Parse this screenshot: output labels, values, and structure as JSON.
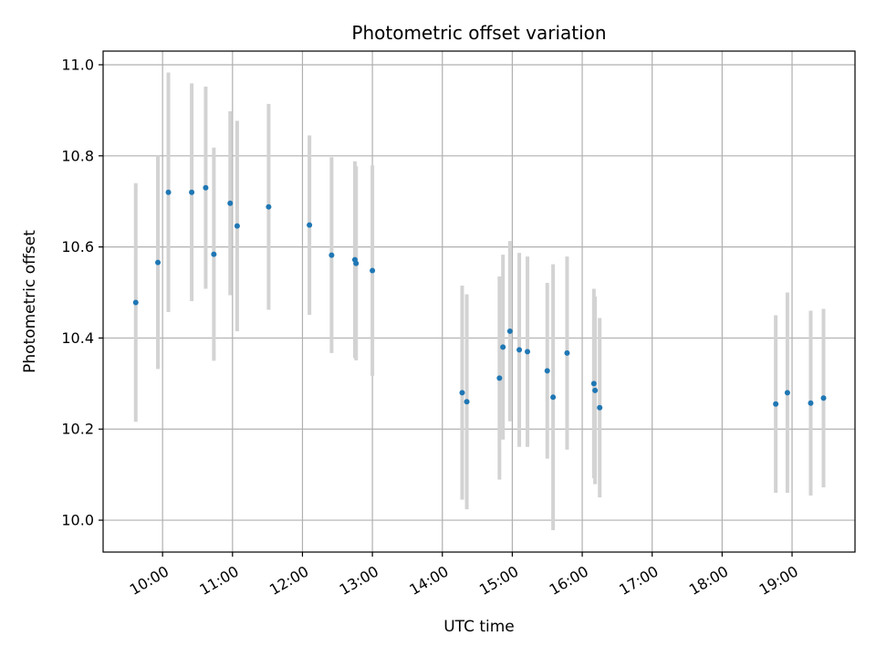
{
  "chart_data": {
    "type": "scatter",
    "title": "Photometric offset variation",
    "xlabel": "UTC time",
    "ylabel": "Photometric offset",
    "grid": true,
    "xlim": [
      "09:09",
      "19:54"
    ],
    "ylim": [
      9.93,
      11.03
    ],
    "x_ticks": [
      "10:00",
      "11:00",
      "12:00",
      "13:00",
      "14:00",
      "15:00",
      "16:00",
      "17:00",
      "18:00",
      "19:00"
    ],
    "y_ticks": [
      10.0,
      10.2,
      10.4,
      10.6,
      10.8,
      11.0
    ],
    "y_tick_labels": [
      "10.0",
      "10.2",
      "10.4",
      "10.6",
      "10.8",
      "11.0"
    ],
    "colors": {
      "points": "#1f77b4",
      "error_bars": "#d3d3d3",
      "grid": "#b0b0b0"
    },
    "points": [
      {
        "x": "09:37",
        "y": 10.478,
        "err": 0.262
      },
      {
        "x": "09:56",
        "y": 10.566,
        "err": 0.234
      },
      {
        "x": "10:05",
        "y": 10.72,
        "err": 0.263
      },
      {
        "x": "10:25",
        "y": 10.72,
        "err": 0.239
      },
      {
        "x": "10:37",
        "y": 10.73,
        "err": 0.222
      },
      {
        "x": "10:44",
        "y": 10.584,
        "err": 0.234
      },
      {
        "x": "10:58",
        "y": 10.696,
        "err": 0.202
      },
      {
        "x": "11:04",
        "y": 10.646,
        "err": 0.231
      },
      {
        "x": "11:31",
        "y": 10.688,
        "err": 0.226
      },
      {
        "x": "12:06",
        "y": 10.648,
        "err": 0.197
      },
      {
        "x": "12:25",
        "y": 10.582,
        "err": 0.215
      },
      {
        "x": "12:45",
        "y": 10.572,
        "err": 0.216
      },
      {
        "x": "12:46",
        "y": 10.564,
        "err": 0.213
      },
      {
        "x": "13:00",
        "y": 10.548,
        "err": 0.231
      },
      {
        "x": "14:17",
        "y": 10.28,
        "err": 0.235
      },
      {
        "x": "14:21",
        "y": 10.26,
        "err": 0.236
      },
      {
        "x": "14:49",
        "y": 10.312,
        "err": 0.223
      },
      {
        "x": "14:52",
        "y": 10.38,
        "err": 0.203
      },
      {
        "x": "14:58",
        "y": 10.415,
        "err": 0.198
      },
      {
        "x": "15:06",
        "y": 10.374,
        "err": 0.213
      },
      {
        "x": "15:13",
        "y": 10.37,
        "err": 0.209
      },
      {
        "x": "15:30",
        "y": 10.328,
        "err": 0.193
      },
      {
        "x": "15:35",
        "y": 10.27,
        "err": 0.292
      },
      {
        "x": "15:47",
        "y": 10.367,
        "err": 0.212
      },
      {
        "x": "16:10",
        "y": 10.3,
        "err": 0.208
      },
      {
        "x": "16:11",
        "y": 10.285,
        "err": 0.206
      },
      {
        "x": "16:15",
        "y": 10.247,
        "err": 0.197
      },
      {
        "x": "18:46",
        "y": 10.255,
        "err": 0.195
      },
      {
        "x": "18:56",
        "y": 10.28,
        "err": 0.22
      },
      {
        "x": "19:16",
        "y": 10.257,
        "err": 0.203
      },
      {
        "x": "19:27",
        "y": 10.268,
        "err": 0.196
      }
    ]
  }
}
